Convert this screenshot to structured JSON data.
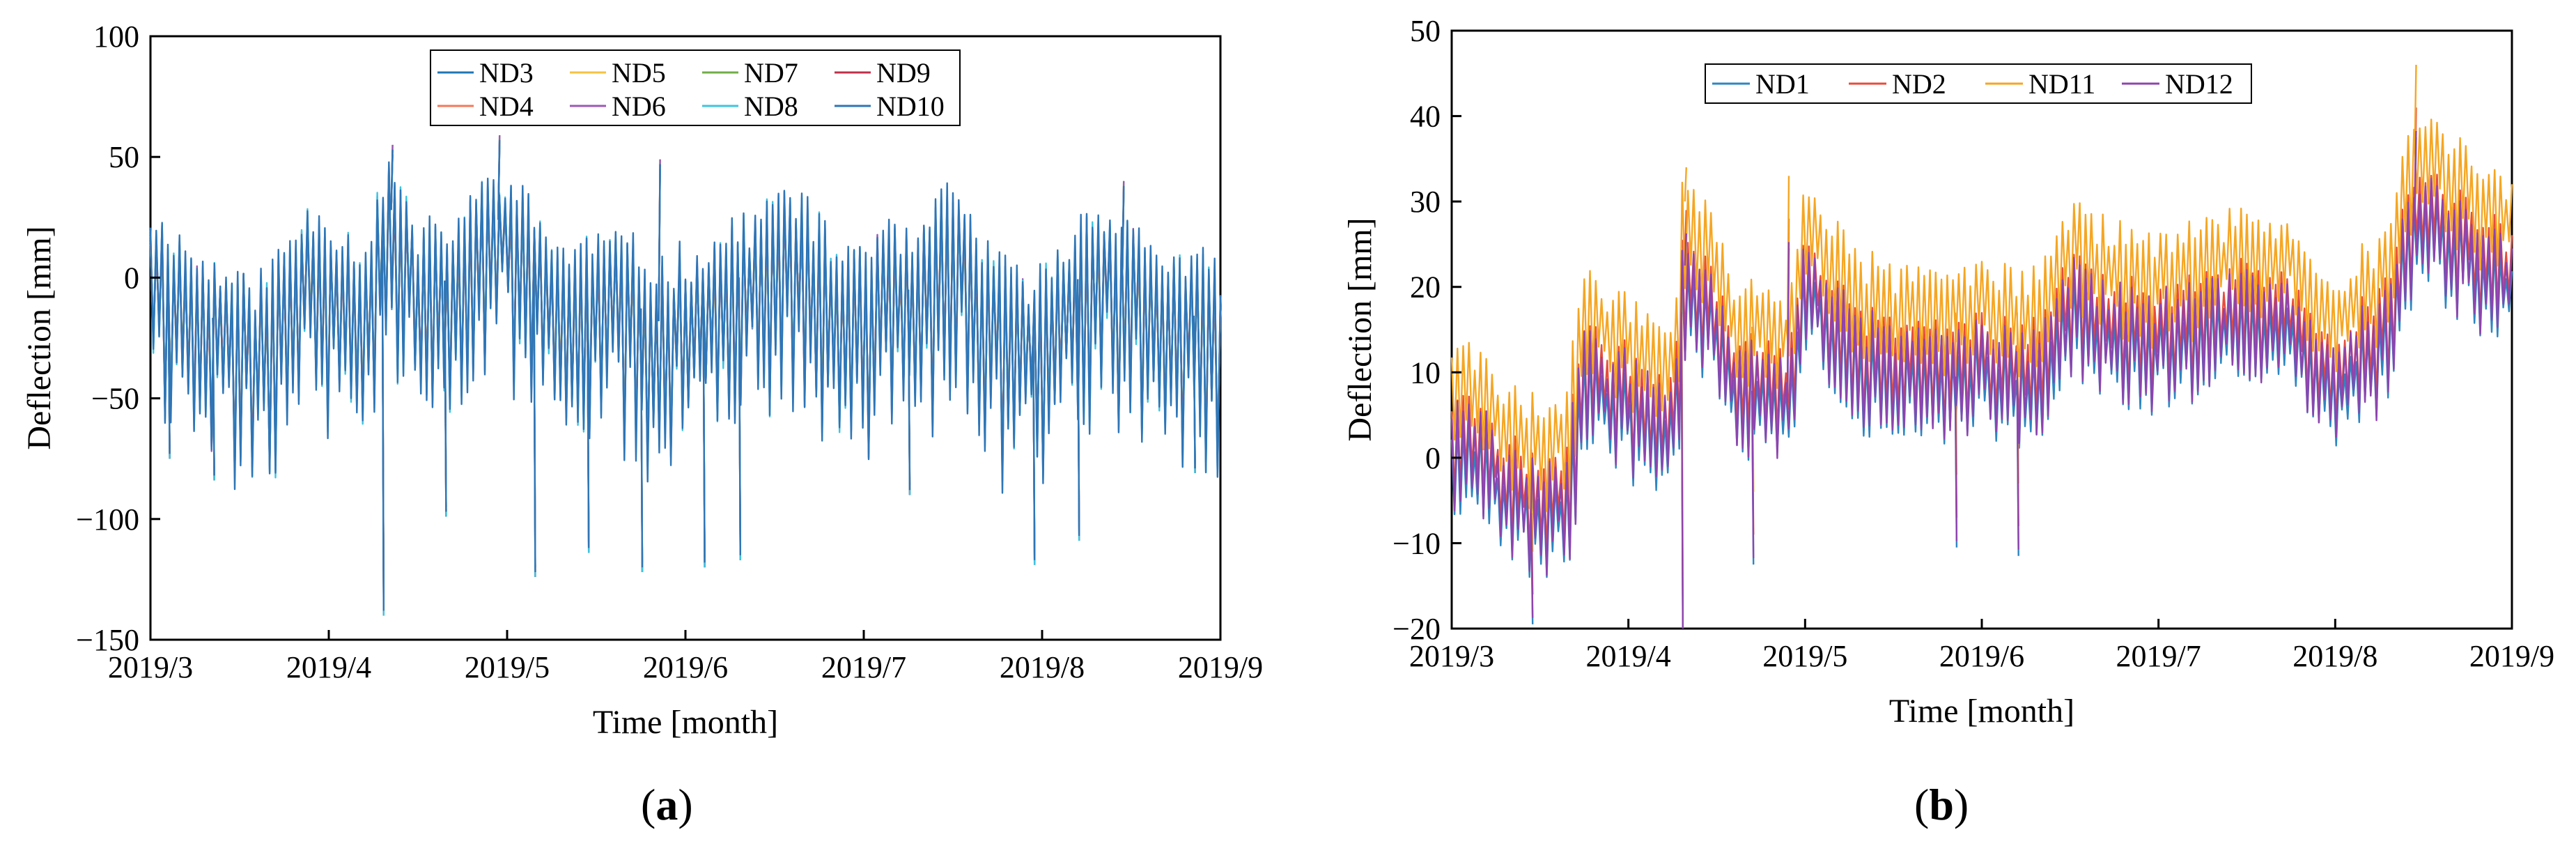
{
  "chart_data": [
    {
      "id": "a",
      "type": "line",
      "panel_label": "(a)",
      "panel_letter": "a",
      "xlabel": "Time [month]",
      "ylabel": "Deflection [mm]",
      "ylim": [
        -150,
        100
      ],
      "yticks": [
        -150,
        -100,
        -50,
        0,
        50,
        100
      ],
      "ytick_labels": [
        "−150",
        "−100",
        "−50",
        "0",
        "50",
        "100"
      ],
      "xlim": [
        0,
        6
      ],
      "xticks": [
        0,
        1,
        2,
        3,
        4,
        5,
        6
      ],
      "xtick_labels": [
        "2019/3",
        "2019/4",
        "2019/5",
        "2019/6",
        "2019/7",
        "2019/8",
        "2019/9"
      ],
      "legend_position": "top-center",
      "legend_columns": 4,
      "series": [
        {
          "name": "ND3",
          "color": "#1f77b4"
        },
        {
          "name": "ND5",
          "color": "#f5c242"
        },
        {
          "name": "ND7",
          "color": "#70ad47"
        },
        {
          "name": "ND9",
          "color": "#c0304a"
        },
        {
          "name": "ND4",
          "color": "#f4775a"
        },
        {
          "name": "ND6",
          "color": "#9b59b6"
        },
        {
          "name": "ND8",
          "color": "#3cc5e0"
        },
        {
          "name": "ND10",
          "color": "#2e75b6"
        }
      ],
      "trend_months": [
        0,
        0.3,
        0.6,
        0.9,
        1.2,
        1.35,
        1.5,
        1.7,
        1.95,
        2.1,
        2.3,
        2.6,
        2.85,
        3.1,
        3.3,
        3.6,
        3.85,
        4.1,
        4.3,
        4.5,
        4.75,
        5.0,
        5.3,
        5.55,
        5.8,
        6.0
      ],
      "trend_values": [
        5,
        -15,
        -25,
        8,
        -10,
        28,
        -5,
        0,
        24,
        10,
        -10,
        -5,
        -18,
        -10,
        0,
        15,
        -10,
        -5,
        -5,
        15,
        -18,
        -22,
        10,
        -5,
        -15,
        -18
      ],
      "spread_high": 20,
      "spread_low": -60,
      "peak_events": [
        {
          "month": 1.35,
          "value": 53
        },
        {
          "month": 1.95,
          "value": 57
        },
        {
          "month": 2.85,
          "value": 47
        },
        {
          "month": 5.45,
          "value": 38
        }
      ],
      "trough_events": [
        {
          "month": 0.1,
          "value": -73
        },
        {
          "month": 0.35,
          "value": -82
        },
        {
          "month": 1.3,
          "value": -138
        },
        {
          "month": 1.65,
          "value": -97
        },
        {
          "month": 2.15,
          "value": -122
        },
        {
          "month": 2.45,
          "value": -112
        },
        {
          "month": 2.75,
          "value": -120
        },
        {
          "month": 3.1,
          "value": -118
        },
        {
          "month": 3.3,
          "value": -115
        },
        {
          "month": 4.25,
          "value": -88
        },
        {
          "month": 4.95,
          "value": -117
        },
        {
          "month": 5.2,
          "value": -107
        },
        {
          "month": 5.85,
          "value": -79
        }
      ]
    },
    {
      "id": "b",
      "type": "line",
      "panel_label": "(b)",
      "panel_letter": "b",
      "xlabel": "Time [month]",
      "ylabel": "Deflection [mm]",
      "ylim": [
        -20,
        50
      ],
      "yticks": [
        -20,
        -10,
        0,
        10,
        20,
        30,
        40,
        50
      ],
      "ytick_labels": [
        "−20",
        "−10",
        "0",
        "10",
        "20",
        "30",
        "40",
        "50"
      ],
      "xlim": [
        0,
        6
      ],
      "xticks": [
        0,
        1,
        2,
        3,
        4,
        5,
        6
      ],
      "xtick_labels": [
        "2019/3",
        "2019/4",
        "2019/5",
        "2019/6",
        "2019/7",
        "2019/8",
        "2019/9"
      ],
      "legend_position": "top-left",
      "legend_columns": 4,
      "series": [
        {
          "name": "ND1",
          "color": "#2e86c1"
        },
        {
          "name": "ND2",
          "color": "#e74c3c"
        },
        {
          "name": "ND11",
          "color": "#f5a623"
        },
        {
          "name": "ND12",
          "color": "#8e44ad"
        }
      ],
      "trend_months": [
        0,
        0.2,
        0.45,
        0.65,
        0.75,
        1.0,
        1.25,
        1.32,
        1.6,
        1.9,
        2.0,
        2.3,
        2.6,
        2.9,
        3.0,
        3.3,
        3.5,
        3.8,
        4.1,
        4.4,
        4.7,
        5.0,
        5.3,
        5.45,
        5.7,
        6.0
      ],
      "trend_values": [
        3,
        0,
        -5,
        -3,
        11,
        7,
        5,
        24,
        10,
        8,
        22,
        12,
        11,
        11,
        13,
        10,
        19,
        15,
        15,
        17,
        18,
        10,
        16,
        30,
        25,
        22
      ],
      "spread_high": 6,
      "spread_low": -8,
      "series_offsets": [
        -3,
        0,
        6,
        -1.5
      ],
      "peak_events": [
        {
          "month": 1.32,
          "value": 29
        },
        {
          "month": 1.9,
          "value": 28
        },
        {
          "month": 5.45,
          "value": 41
        }
      ],
      "trough_events": [
        {
          "month": 0.45,
          "value": -16
        },
        {
          "month": 1.3,
          "value": -19
        },
        {
          "month": 1.7,
          "value": -9
        },
        {
          "month": 2.85,
          "value": -7
        },
        {
          "month": 3.2,
          "value": -8
        }
      ]
    }
  ]
}
